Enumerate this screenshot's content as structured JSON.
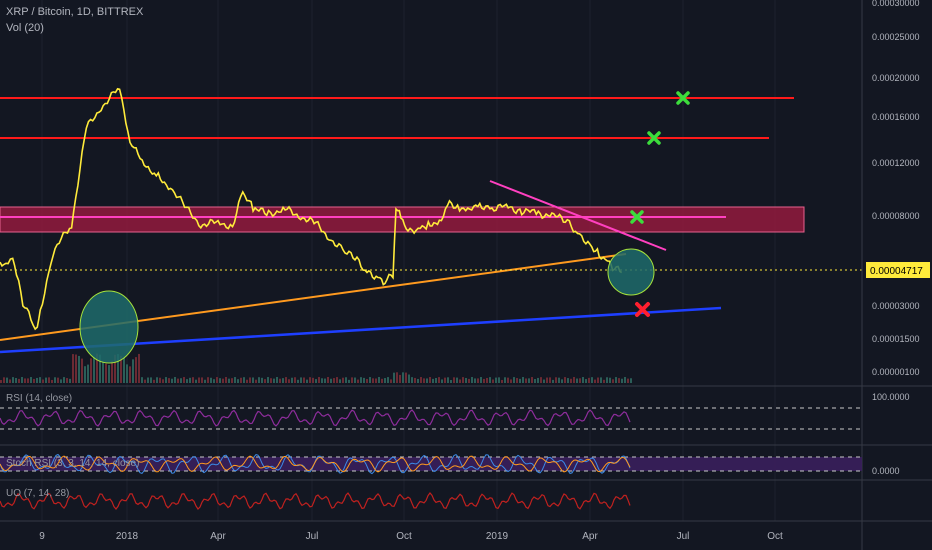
{
  "header": {
    "symbol_line": "XRP / Bitcoin, 1D, BITTREX",
    "volume_label": "Vol (20)"
  },
  "indicators": {
    "rsi_label": "RSI (14, close)",
    "rsi_value": "100.0000",
    "stoch_label": "Stoch RSI (3, 3, 14, 14, close)",
    "stoch_value": "0.0000",
    "uo_label": "UO (7, 14, 28)"
  },
  "colors": {
    "background": "#131722",
    "price_line": "#ffeb3b",
    "resistance": "#ff1a1a",
    "zone_fill": "#8b1a3c",
    "zone_line": "#ff40c0",
    "downtrend": "#ff40c0",
    "uptrend_orange": "#ff9a1f",
    "support_blue": "#1e3fff",
    "target_x": "#3cdc3c",
    "stop_x": "#ff1f2f",
    "ellipse_fill": "#1f6b6b",
    "ellipse_stroke": "#a6e33b",
    "rsi_line": "#8e2d9c",
    "uo_line": "#c0211f"
  },
  "chart_data": {
    "type": "line",
    "title": "XRP / Bitcoin, 1D, BITTREX",
    "scale": "log",
    "y_ticks": [
      "0.00030000",
      "0.00025000",
      "0.00020000",
      "0.00016000",
      "0.00012000",
      "0.00008000",
      "0.00004717",
      "0.00003000",
      "0.00001500",
      "0.00000100"
    ],
    "current_price": "0.00004717",
    "x_ticks": [
      "9",
      "2018",
      "Apr",
      "Jul",
      "Oct",
      "2019",
      "Apr",
      "Jul",
      "Oct"
    ],
    "series": [
      {
        "values": [
          [
            "2017-09-01",
            5.2e-05
          ],
          [
            "2017-09-20",
            5.1e-05
          ],
          [
            "2017-10-01",
            5.6e-05
          ],
          [
            "2017-10-10",
            4.4e-05
          ],
          [
            "2017-10-25",
            3.2e-05
          ],
          [
            "2017-11-08",
            2.6e-05
          ],
          [
            "2017-11-18",
            2.2e-05
          ],
          [
            "2017-11-28",
            2e-05
          ],
          [
            "2017-12-05",
            2.8e-05
          ],
          [
            "2017-12-12",
            5.8e-05
          ],
          [
            "2017-12-17",
            7.5e-05
          ],
          [
            "2017-12-21",
            0.00015
          ],
          [
            "2017-12-25",
            0.00017
          ],
          [
            "2017-12-30",
            0.00019
          ],
          [
            "2018-01-04",
            0.00014
          ],
          [
            "2018-01-10",
            0.00013
          ],
          [
            "2018-01-20",
            0.000115
          ],
          [
            "2018-02-01",
            0.00011
          ],
          [
            "2018-02-15",
            0.0001
          ],
          [
            "2018-03-01",
            8.5e-05
          ],
          [
            "2018-03-15",
            7.5e-05
          ],
          [
            "2018-04-01",
            7.6e-05
          ],
          [
            "2018-04-15",
            7.4e-05
          ],
          [
            "2018-04-25",
            9.8e-05
          ],
          [
            "2018-05-05",
            8.5e-05
          ],
          [
            "2018-05-20",
            8.2e-05
          ],
          [
            "2018-06-05",
            8.5e-05
          ],
          [
            "2018-06-20",
            8e-05
          ],
          [
            "2018-07-05",
            7.5e-05
          ],
          [
            "2018-07-20",
            6.6e-05
          ],
          [
            "2018-08-01",
            5.9e-05
          ],
          [
            "2018-08-15",
            5.3e-05
          ],
          [
            "2018-08-25",
            4.6e-05
          ],
          [
            "2018-09-05",
            4.4e-05
          ],
          [
            "2018-09-12",
            4.1e-05
          ],
          [
            "2018-09-20",
            4.5e-05
          ],
          [
            "2018-09-23",
            8.5e-05
          ],
          [
            "2018-09-28",
            8e-05
          ],
          [
            "2018-10-05",
            7.1e-05
          ],
          [
            "2018-10-15",
            7.3e-05
          ],
          [
            "2018-10-25",
            7.5e-05
          ],
          [
            "2018-11-05",
            7.7e-05
          ],
          [
            "2018-11-15",
            9.1e-05
          ],
          [
            "2018-11-25",
            8.6e-05
          ],
          [
            "2018-12-05",
            8.7e-05
          ],
          [
            "2018-12-15",
            8.9e-05
          ],
          [
            "2018-12-25",
            8.6e-05
          ],
          [
            "2019-01-10",
            8.7e-05
          ],
          [
            "2019-01-25",
            8.4e-05
          ],
          [
            "2019-02-10",
            8.2e-05
          ],
          [
            "2019-02-25",
            8e-05
          ],
          [
            "2019-03-10",
            7.7e-05
          ],
          [
            "2019-03-20",
            7e-05
          ],
          [
            "2019-04-01",
            6.3e-05
          ],
          [
            "2019-04-10",
            5.7e-05
          ],
          [
            "2019-04-18",
            5.3e-05
          ],
          [
            "2019-04-25",
            4.8e-05
          ],
          [
            "2019-05-02",
            4.6e-05
          ]
        ]
      }
    ],
    "annotations": {
      "resistance_levels": [
        0.000195,
        0.00015
      ],
      "zone": [
        7.1e-05,
        9.1e-05
      ],
      "zone_midline": 8.1e-05,
      "uptrend_line": [
        [
          "2017-09-01",
          1.8e-05
        ],
        [
          "2019-04-18",
          6e-05
        ]
      ],
      "support_line": [
        [
          "2017-09-01",
          1.2e-05
        ],
        [
          "2019-06-15",
          2.6e-05
        ]
      ],
      "downtrend_line": [
        [
          "2018-12-25",
          0.0001
        ],
        [
          "2019-05-20",
          6.6e-05
        ]
      ],
      "targets_x": [
        0.000195,
        0.00015,
        8.6e-05
      ],
      "stop_x": 2.7e-05
    }
  }
}
